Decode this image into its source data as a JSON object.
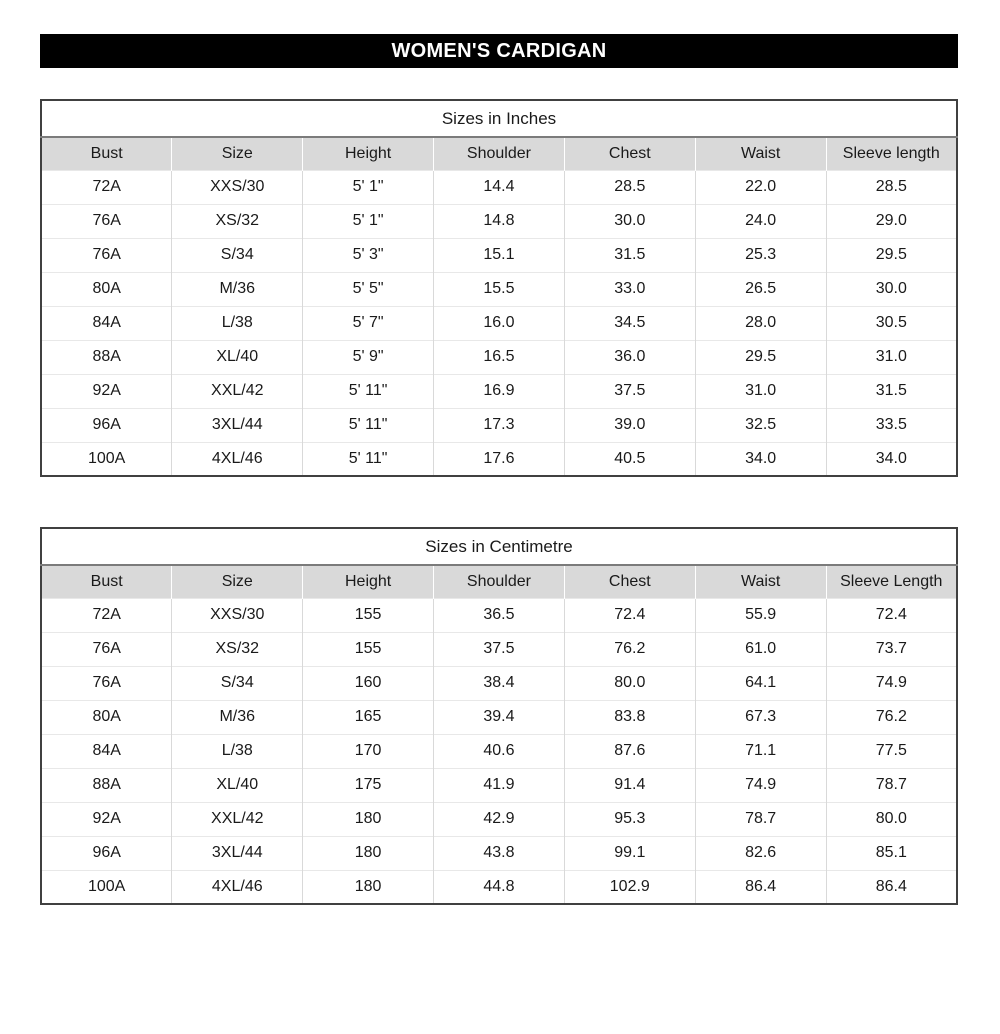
{
  "page_title": {
    "text": "WOMEN'S CARDIGAN"
  },
  "colors": {
    "banner_bg": "#000000",
    "banner_text": "#ffffff",
    "header_row_bg": "#d9d9d9",
    "table_border": "#404040"
  },
  "tables": [
    {
      "title": "Sizes in Inches",
      "columns": [
        "Bust",
        "Size",
        "Height",
        "Shoulder",
        "Chest",
        "Waist",
        "Sleeve length"
      ],
      "rows": [
        [
          "72A",
          "XXS/30",
          "5' 1\"",
          "14.4",
          "28.5",
          "22.0",
          "28.5"
        ],
        [
          "76A",
          "XS/32",
          "5' 1\"",
          "14.8",
          "30.0",
          "24.0",
          "29.0"
        ],
        [
          "76A",
          "S/34",
          "5' 3\"",
          "15.1",
          "31.5",
          "25.3",
          "29.5"
        ],
        [
          "80A",
          "M/36",
          "5' 5\"",
          "15.5",
          "33.0",
          "26.5",
          "30.0"
        ],
        [
          "84A",
          "L/38",
          "5' 7\"",
          "16.0",
          "34.5",
          "28.0",
          "30.5"
        ],
        [
          "88A",
          "XL/40",
          "5' 9\"",
          "16.5",
          "36.0",
          "29.5",
          "31.0"
        ],
        [
          "92A",
          "XXL/42",
          "5' 11\"",
          "16.9",
          "37.5",
          "31.0",
          "31.5"
        ],
        [
          "96A",
          "3XL/44",
          "5' 11\"",
          "17.3",
          "39.0",
          "32.5",
          "33.5"
        ],
        [
          "100A",
          "4XL/46",
          "5' 11\"",
          "17.6",
          "40.5",
          "34.0",
          "34.0"
        ]
      ]
    },
    {
      "title": "Sizes in Centimetre",
      "columns": [
        "Bust",
        "Size",
        "Height",
        "Shoulder",
        "Chest",
        "Waist",
        "Sleeve Length"
      ],
      "rows": [
        [
          "72A",
          "XXS/30",
          "155",
          "36.5",
          "72.4",
          "55.9",
          "72.4"
        ],
        [
          "76A",
          "XS/32",
          "155",
          "37.5",
          "76.2",
          "61.0",
          "73.7"
        ],
        [
          "76A",
          "S/34",
          "160",
          "38.4",
          "80.0",
          "64.1",
          "74.9"
        ],
        [
          "80A",
          "M/36",
          "165",
          "39.4",
          "83.8",
          "67.3",
          "76.2"
        ],
        [
          "84A",
          "L/38",
          "170",
          "40.6",
          "87.6",
          "71.1",
          "77.5"
        ],
        [
          "88A",
          "XL/40",
          "175",
          "41.9",
          "91.4",
          "74.9",
          "78.7"
        ],
        [
          "92A",
          "XXL/42",
          "180",
          "42.9",
          "95.3",
          "78.7",
          "80.0"
        ],
        [
          "96A",
          "3XL/44",
          "180",
          "43.8",
          "99.1",
          "82.6",
          "85.1"
        ],
        [
          "100A",
          "4XL/46",
          "180",
          "44.8",
          "102.9",
          "86.4",
          "86.4"
        ]
      ]
    }
  ]
}
